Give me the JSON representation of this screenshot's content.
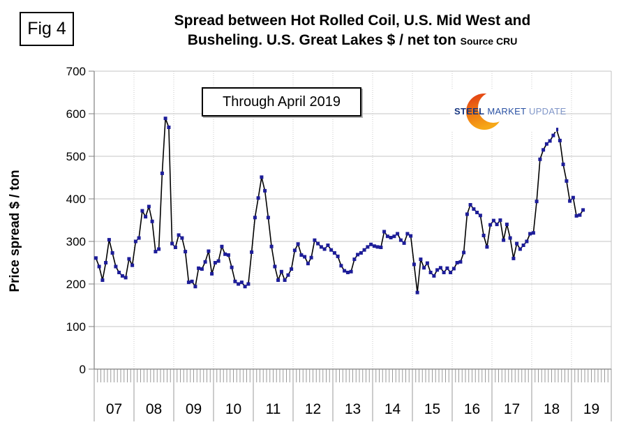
{
  "figure_label": "Fig 4",
  "header": {
    "title_line1": "Spread between Hot Rolled Coil, U.S. Mid West and",
    "title_line2": "Busheling. U.S. Great Lakes  $ / net ton",
    "source_note": "Source CRU"
  },
  "annotation": {
    "text": "Through April 2019"
  },
  "y_axis": {
    "label": "Price spread $ / ton"
  },
  "logo": {
    "word1": "STEEL",
    "word2": "MARKET",
    "word3": "UPDATE"
  },
  "colors": {
    "line": "#000000",
    "marker": "#1d1d99",
    "grid": "#c6c6c6",
    "grid_dotted": "#c9c9c9",
    "axis": "#808080",
    "minor_tick": "#9a9a9a",
    "right_spine": "#c0c0c0",
    "logo_orange_top": "#e03414",
    "logo_orange_mid": "#ef7512",
    "logo_orange_bottom": "#f6a818",
    "logo_blue_dark": "#16357f",
    "logo_blue": "#2a51a3",
    "logo_blue_light": "#8096c8"
  },
  "chart_data": {
    "type": "line",
    "title": "Spread between Hot Rolled Coil, U.S. Mid West and Busheling. U.S. Great Lakes $ / net ton",
    "source": "CRU",
    "xlabel": "",
    "ylabel": "Price spread $ / ton",
    "ylim": [
      0,
      700
    ],
    "y_ticks": [
      0,
      100,
      200,
      300,
      400,
      500,
      600,
      700
    ],
    "grid": "horizontal solid every 100; vertical dotted at year boundaries",
    "legend_position": "none",
    "x_unit": "month",
    "coverage": "January 2007 through April 2019",
    "year_labels": [
      "07",
      "08",
      "09",
      "10",
      "11",
      "12",
      "13",
      "14",
      "15",
      "16",
      "17",
      "18",
      "19"
    ],
    "displayed_year_slots": 13,
    "series": [
      {
        "name": "HRC Midwest minus Busheling Great Lakes spread, $/net ton",
        "monthly_values_by_year": {
          "2007": [
            261,
            241,
            209,
            250,
            304,
            273,
            241,
            227,
            219,
            215,
            259,
            244
          ],
          "2008": [
            300,
            308,
            372,
            358,
            382,
            347,
            276,
            282,
            460,
            589,
            568,
            295
          ],
          "2009": [
            286,
            315,
            308,
            276,
            204,
            206,
            194,
            237,
            235,
            252,
            277,
            224
          ],
          "2010": [
            250,
            254,
            288,
            270,
            268,
            239,
            206,
            200,
            204,
            194,
            200,
            275
          ],
          "2011": [
            356,
            402,
            451,
            419,
            356,
            288,
            241,
            209,
            229,
            209,
            221,
            235
          ],
          "2012": [
            279,
            294,
            268,
            264,
            248,
            262,
            303,
            295,
            287,
            282,
            291,
            280
          ],
          "2013": [
            273,
            265,
            243,
            231,
            227,
            229,
            258,
            269,
            273,
            280,
            287,
            293
          ],
          "2014": [
            289,
            287,
            286,
            323,
            312,
            309,
            312,
            318,
            303,
            296,
            318,
            313
          ],
          "2015": [
            246,
            180,
            258,
            238,
            249,
            227,
            219,
            233,
            238,
            227,
            237,
            227
          ],
          "2016": [
            236,
            250,
            252,
            274,
            364,
            386,
            376,
            368,
            361,
            314,
            287,
            339
          ],
          "2017": [
            349,
            340,
            350,
            303,
            340,
            308,
            260,
            295,
            282,
            291,
            300,
            318
          ],
          "2018": [
            320,
            394,
            493,
            515,
            529,
            536,
            549,
            563,
            537,
            481,
            442,
            395
          ],
          "2019": [
            403,
            360,
            362,
            374
          ]
        }
      }
    ]
  }
}
